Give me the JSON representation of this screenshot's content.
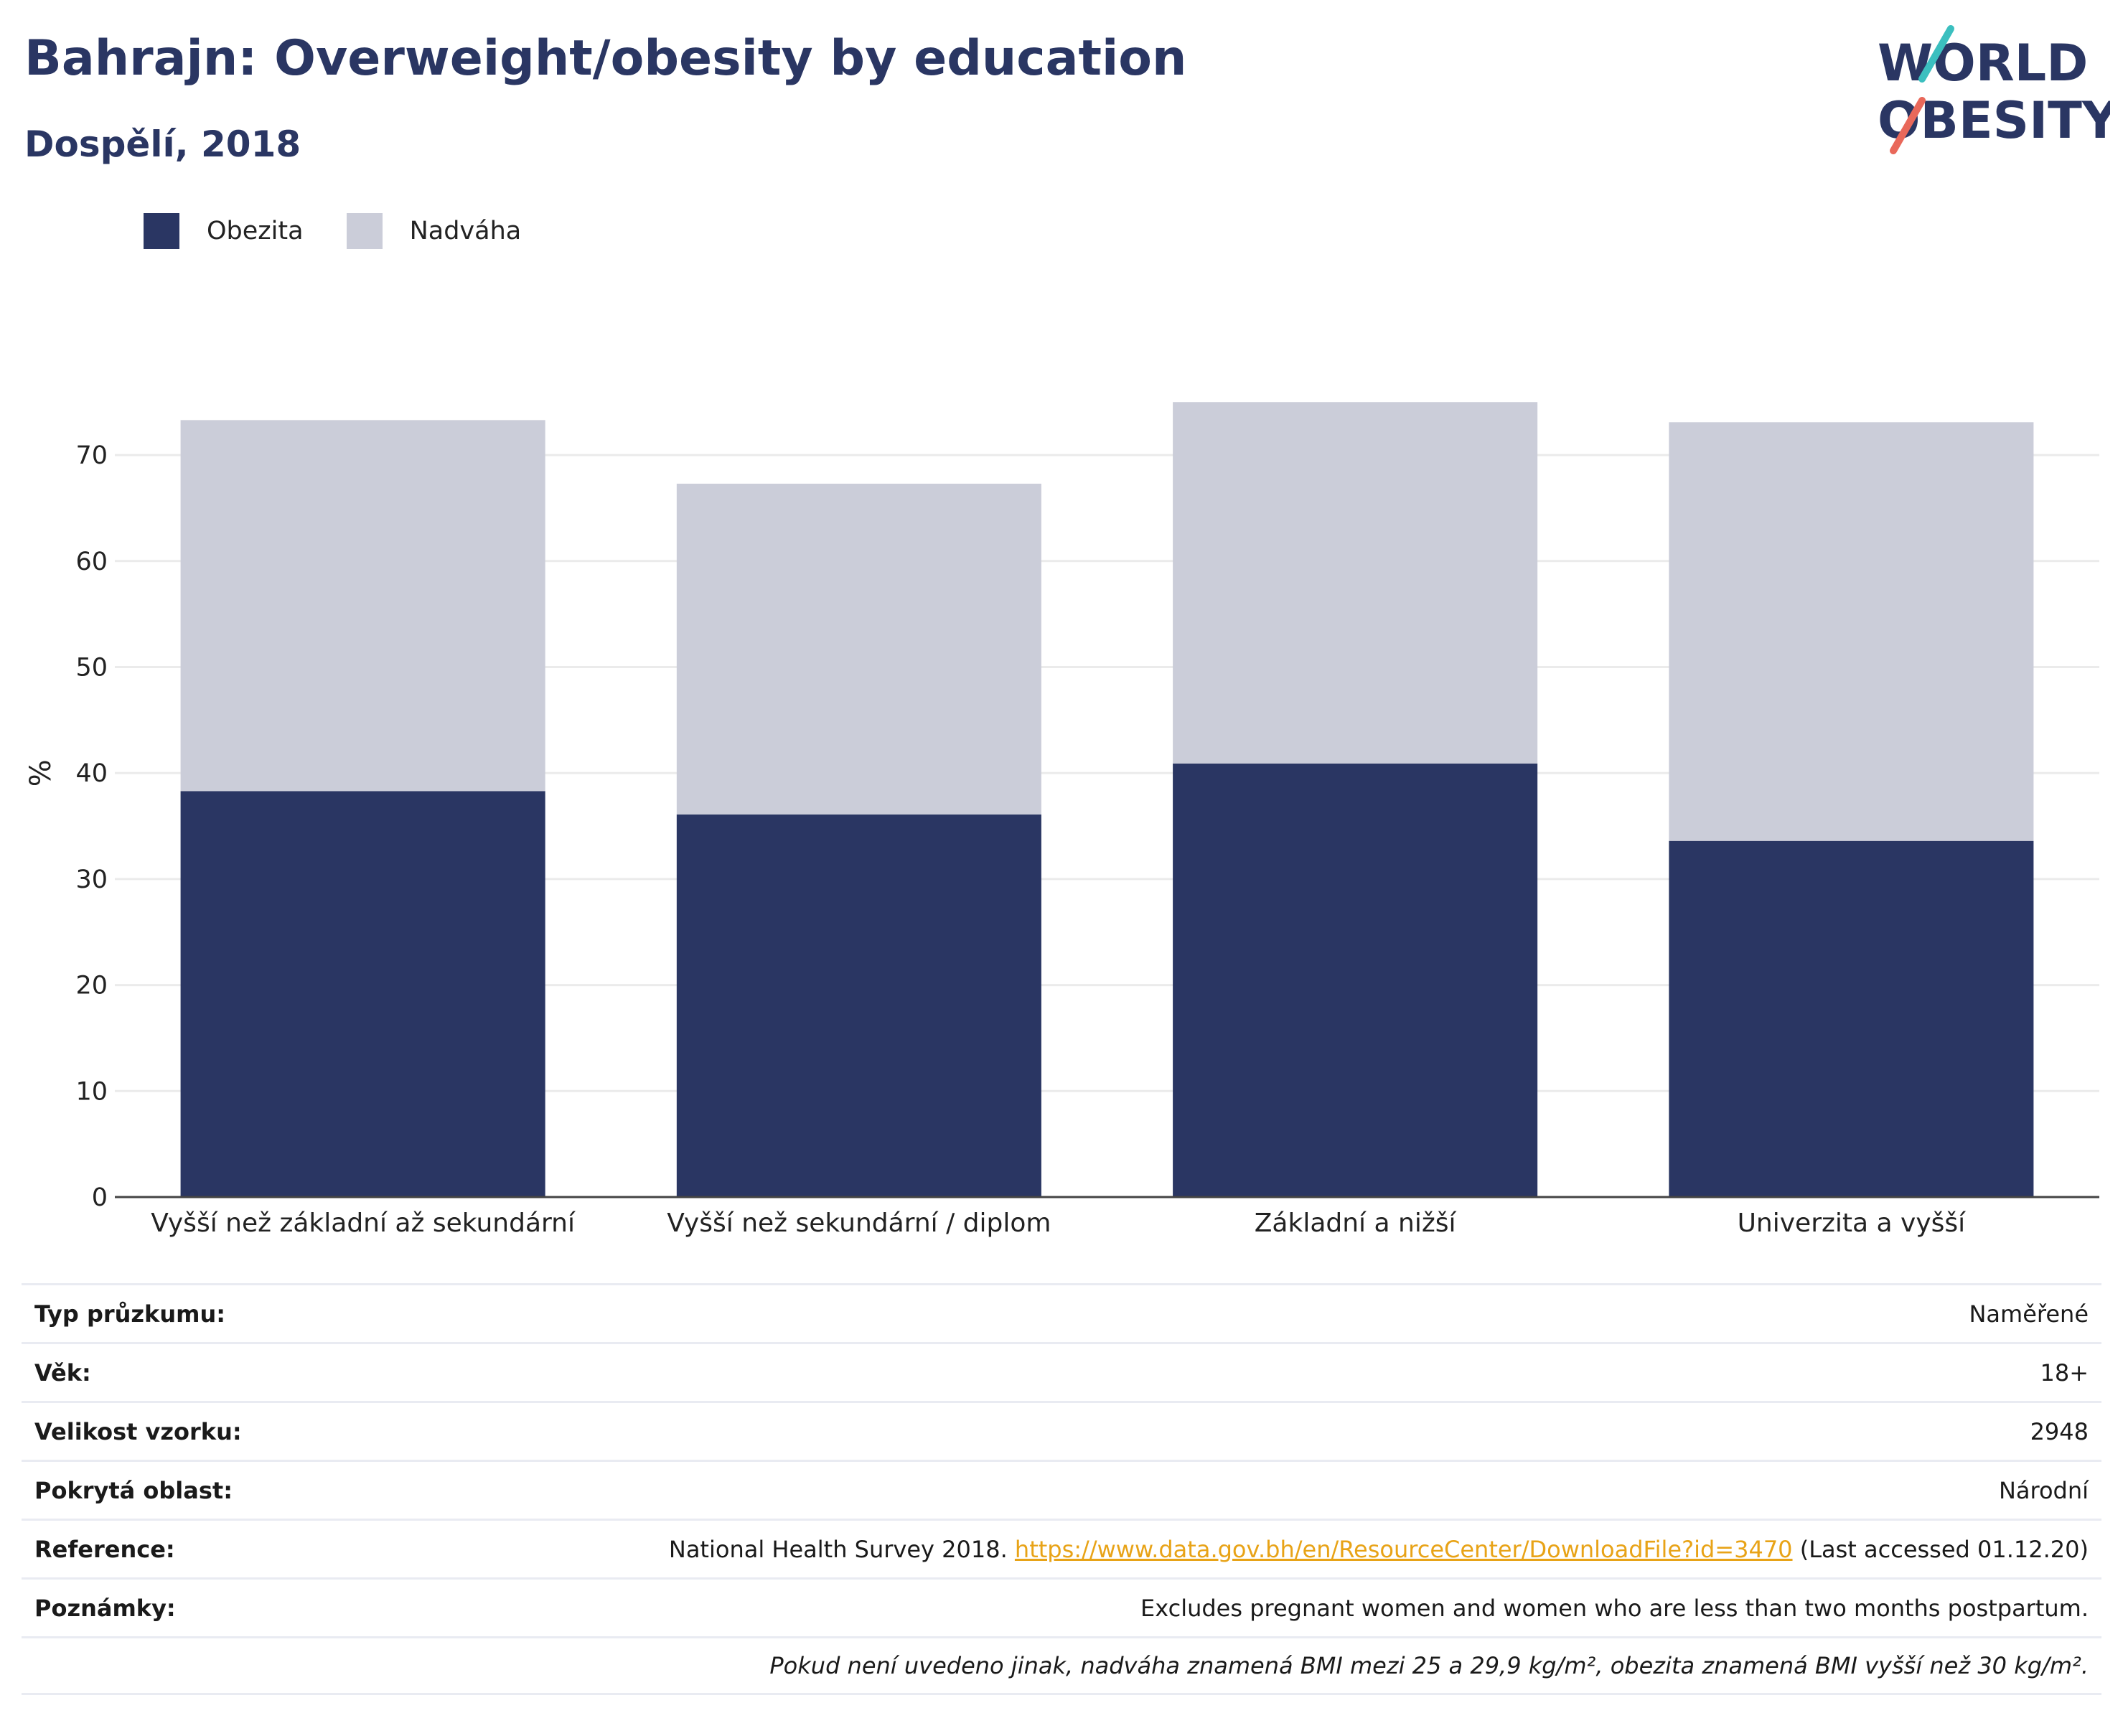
{
  "header": {
    "title": "Bahrajn: Overweight/obesity by education",
    "subtitle": "Dospělí, 2018"
  },
  "logo": {
    "line1": "WORLD",
    "line2": "OBESITY"
  },
  "colors": {
    "obesity": "#2a3663",
    "overweight": "#cbcdd9",
    "link": "#e8a317"
  },
  "chart_data": {
    "type": "bar",
    "stacked": true,
    "categories": [
      "Vyšší než základní až sekundární",
      "Vyšší než sekundární / diplom",
      "Základní a nižší",
      "Univerzita a vyšší"
    ],
    "series": [
      {
        "name": "Obezita",
        "values": [
          38.3,
          36.1,
          40.9,
          33.6
        ]
      },
      {
        "name": "Nadváha",
        "values": [
          35.0,
          31.2,
          34.1,
          39.5
        ]
      }
    ],
    "ylabel": "%",
    "ylim": [
      0,
      75
    ],
    "yticks": [
      0,
      10,
      20,
      30,
      40,
      50,
      60,
      70
    ],
    "grid": true,
    "legend_position": "top-left"
  },
  "meta": {
    "rows": [
      {
        "key": "Typ průzkumu:",
        "value": "Naměřené"
      },
      {
        "key": "Věk:",
        "value": "18+"
      },
      {
        "key": "Velikost vzorku:",
        "value": "2948"
      },
      {
        "key": "Pokrytá oblast:",
        "value": "Národní"
      }
    ],
    "reference": {
      "key": "Reference:",
      "prefix": "National Health Survey 2018. ",
      "link": "https://www.data.gov.bh/en/ResourceCenter/DownloadFile?id=3470",
      "suffix": " (Last accessed 01.12.20)"
    },
    "notes": {
      "key": "Poznámky:",
      "value": "Excludes pregnant women and women who are less than two months postpartum."
    },
    "footnote": "Pokud není uvedeno jinak, nadváha znamená BMI mezi 25 a 29,9 kg/m², obezita znamená BMI vyšší než 30 kg/m²."
  }
}
